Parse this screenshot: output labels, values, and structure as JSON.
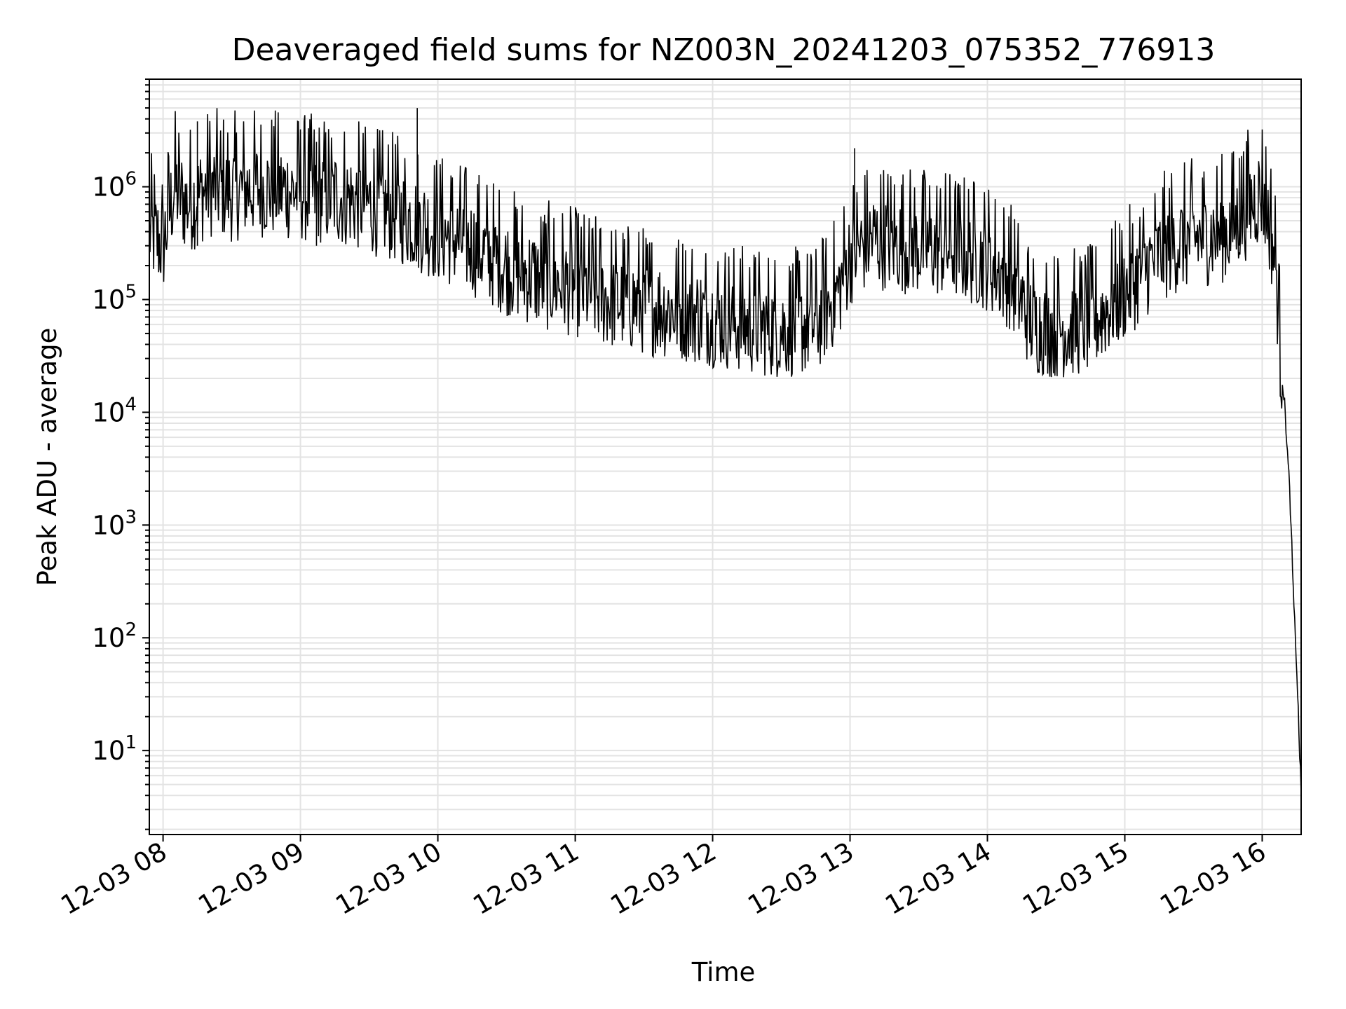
{
  "chart_data": {
    "type": "line",
    "title": "Deaveraged field sums for NZ003N_20241203_075352_776913",
    "xlabel": "Time",
    "ylabel": "Peak ADU - average",
    "yscale": "log",
    "grid": true,
    "legend": "none",
    "line_color": "#000000",
    "grid_color": "#e3e3e3",
    "x_range": [
      "2024-12-03 07:54",
      "2024-12-03 16:17"
    ],
    "ylim": [
      1.8,
      9000000
    ],
    "x_ticks": [
      {
        "value": "2024-12-03 08:00",
        "label": "12-03 08"
      },
      {
        "value": "2024-12-03 09:00",
        "label": "12-03 09"
      },
      {
        "value": "2024-12-03 10:00",
        "label": "12-03 10"
      },
      {
        "value": "2024-12-03 11:00",
        "label": "12-03 11"
      },
      {
        "value": "2024-12-03 12:00",
        "label": "12-03 12"
      },
      {
        "value": "2024-12-03 13:00",
        "label": "12-03 13"
      },
      {
        "value": "2024-12-03 14:00",
        "label": "12-03 14"
      },
      {
        "value": "2024-12-03 15:00",
        "label": "12-03 15"
      },
      {
        "value": "2024-12-03 16:00",
        "label": "12-03 16"
      }
    ],
    "y_ticks": [
      {
        "value": 10,
        "base": "10",
        "exp": "1"
      },
      {
        "value": 100,
        "base": "10",
        "exp": "2"
      },
      {
        "value": 1000,
        "base": "10",
        "exp": "3"
      },
      {
        "value": 10000,
        "base": "10",
        "exp": "4"
      },
      {
        "value": 100000,
        "base": "10",
        "exp": "5"
      },
      {
        "value": 1000000,
        "base": "10",
        "exp": "6"
      }
    ],
    "series": [
      {
        "x": [
          "2024-12-03 07:54",
          "2024-12-03 07:57",
          "2024-12-03 08:00",
          "2024-12-03 08:05",
          "2024-12-03 08:10",
          "2024-12-03 08:15",
          "2024-12-03 08:20",
          "2024-12-03 08:25",
          "2024-12-03 08:30",
          "2024-12-03 08:40",
          "2024-12-03 08:50",
          "2024-12-03 09:00",
          "2024-12-03 09:10",
          "2024-12-03 09:20",
          "2024-12-03 09:30",
          "2024-12-03 09:40",
          "2024-12-03 09:50",
          "2024-12-03 10:00",
          "2024-12-03 10:15",
          "2024-12-03 10:30",
          "2024-12-03 10:45",
          "2024-12-03 11:00",
          "2024-12-03 11:15",
          "2024-12-03 11:30",
          "2024-12-03 11:45",
          "2024-12-03 12:00",
          "2024-12-03 12:15",
          "2024-12-03 12:30",
          "2024-12-03 12:45",
          "2024-12-03 12:55",
          "2024-12-03 13:00",
          "2024-12-03 13:10",
          "2024-12-03 13:20",
          "2024-12-03 13:30",
          "2024-12-03 13:45",
          "2024-12-03 14:00",
          "2024-12-03 14:10",
          "2024-12-03 14:20",
          "2024-12-03 14:30",
          "2024-12-03 14:45",
          "2024-12-03 15:00",
          "2024-12-03 15:10",
          "2024-12-03 15:20",
          "2024-12-03 15:30",
          "2024-12-03 15:45",
          "2024-12-03 15:55",
          "2024-12-03 16:00",
          "2024-12-03 16:03",
          "2024-12-03 16:06",
          "2024-12-03 16:08",
          "2024-12-03 16:10",
          "2024-12-03 16:12",
          "2024-12-03 16:14",
          "2024-12-03 16:15",
          "2024-12-03 16:16",
          "2024-12-03 16:17"
        ],
        "y": [
          400000,
          350000,
          300000,
          1000000,
          700000,
          800000,
          1000000,
          950000,
          900000,
          1000000,
          950000,
          900000,
          850000,
          800000,
          700000,
          600000,
          500000,
          400000,
          300000,
          200000,
          150000,
          130000,
          100000,
          90000,
          80000,
          70000,
          60000,
          55000,
          60000,
          120000,
          250000,
          350000,
          320000,
          300000,
          280000,
          220000,
          150000,
          60000,
          55000,
          60000,
          120000,
          200000,
          300000,
          350000,
          400000,
          700000,
          900000,
          500000,
          200000,
          30000,
          10000,
          2000,
          150,
          60,
          15,
          4
        ],
        "noise": 0.45
      }
    ],
    "spikes": [
      {
        "x": "2024-12-03 08:15",
        "y": 3800000
      },
      {
        "x": "2024-12-03 09:51",
        "y": 5000000
      },
      {
        "x": "2024-12-03 09:07",
        "y": 2500000
      },
      {
        "x": "2024-12-03 13:02",
        "y": 2200000
      },
      {
        "x": "2024-12-03 15:50",
        "y": 1800000
      }
    ]
  }
}
